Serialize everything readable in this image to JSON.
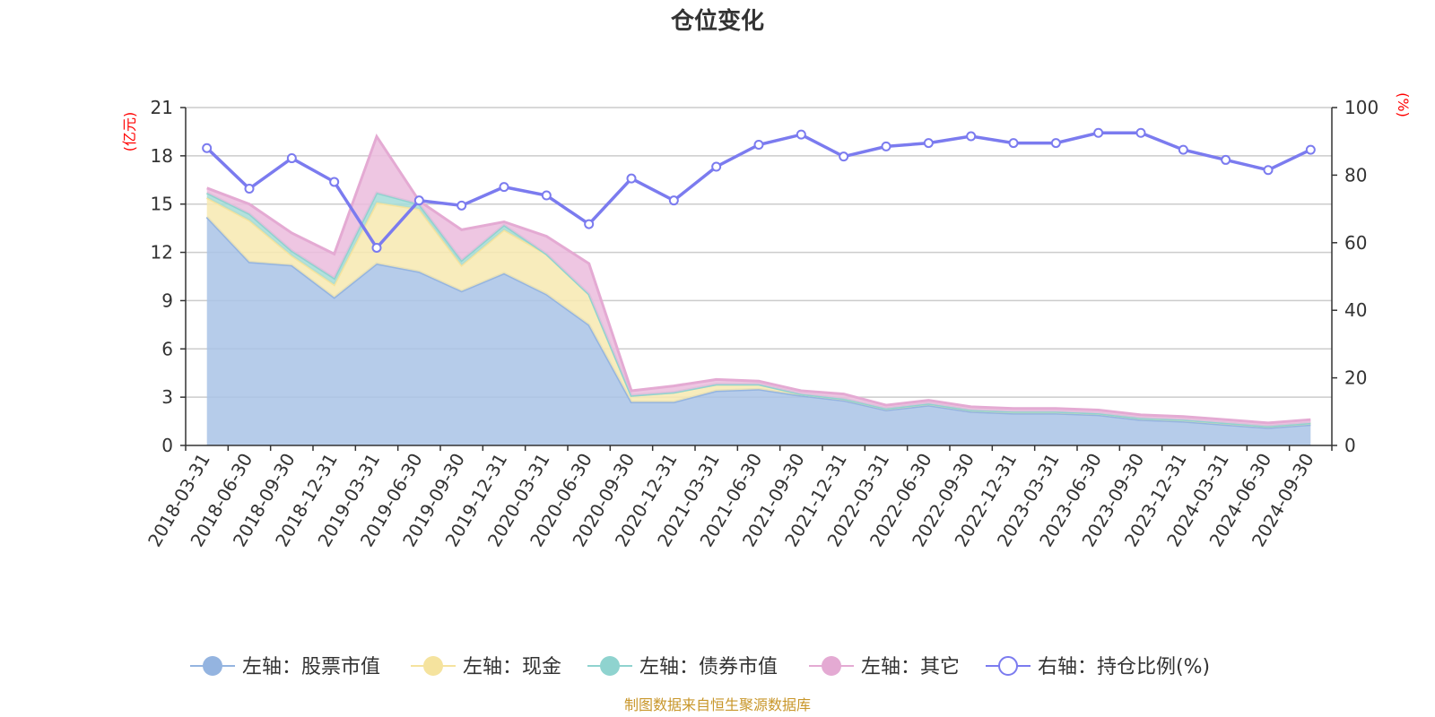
{
  "chart_data": {
    "type": "area",
    "title": "仓位变化",
    "left_axis_unit": "(亿元)",
    "right_axis_unit": "(%)",
    "left_ylim": [
      0,
      21
    ],
    "left_ticks": [
      0,
      3,
      6,
      9,
      12,
      15,
      18,
      21
    ],
    "right_ylim": [
      0,
      100
    ],
    "right_ticks": [
      0,
      20,
      40,
      60,
      80,
      100
    ],
    "categories": [
      "2018-03-31",
      "2018-06-30",
      "2018-09-30",
      "2018-12-31",
      "2019-03-31",
      "2019-06-30",
      "2019-09-30",
      "2019-12-31",
      "2020-03-31",
      "2020-06-30",
      "2020-09-30",
      "2020-12-31",
      "2021-03-31",
      "2021-06-30",
      "2021-09-30",
      "2021-12-31",
      "2022-03-31",
      "2022-06-30",
      "2022-09-30",
      "2022-12-31",
      "2023-03-31",
      "2023-06-30",
      "2023-09-30",
      "2023-12-31",
      "2024-03-31",
      "2024-06-30",
      "2024-09-30"
    ],
    "stacked_series": [
      {
        "name": "左轴：股票市值",
        "color": "#a9c3e6",
        "line_color": "#94b4e0",
        "values": [
          14.2,
          11.4,
          11.2,
          9.2,
          11.3,
          10.8,
          9.6,
          10.7,
          9.4,
          7.5,
          2.7,
          2.7,
          3.4,
          3.5,
          3.1,
          2.8,
          2.2,
          2.5,
          2.1,
          2.0,
          2.0,
          1.9,
          1.6,
          1.5,
          1.3,
          1.1,
          1.3
        ]
      },
      {
        "name": "左轴：现金",
        "color": "#f7e9b0",
        "line_color": "#f5e39e",
        "values": [
          1.2,
          2.6,
          0.6,
          0.8,
          3.8,
          3.9,
          1.6,
          2.7,
          2.5,
          1.9,
          0.4,
          0.6,
          0.4,
          0.3,
          0.1,
          0.1,
          0.1,
          0.1,
          0.1,
          0.1,
          0.1,
          0.1,
          0.1,
          0.1,
          0.1,
          0.1,
          0.1
        ]
      },
      {
        "name": "左轴：债券市值",
        "color": "#a4dcd8",
        "line_color": "#8fd3cf",
        "values": [
          0.3,
          0.4,
          0.3,
          0.4,
          0.6,
          0.3,
          0.3,
          0.3,
          0,
          0,
          0,
          0,
          0,
          0,
          0,
          0,
          0,
          0,
          0,
          0,
          0,
          0,
          0,
          0,
          0,
          0,
          0
        ]
      },
      {
        "name": "左轴：其它",
        "color": "#ebbcdd",
        "line_color": "#e4aad3",
        "values": [
          0.3,
          0.6,
          1.1,
          1.5,
          3.5,
          0.2,
          1.9,
          0.2,
          1.1,
          1.9,
          0.3,
          0.4,
          0.3,
          0.2,
          0.2,
          0.3,
          0.2,
          0.2,
          0.2,
          0.2,
          0.2,
          0.2,
          0.2,
          0.2,
          0.2,
          0.2,
          0.2
        ]
      }
    ],
    "line_series": {
      "name": "右轴：持仓比例(%)",
      "color": "#7b7bef",
      "axis": "right",
      "values": [
        88,
        76,
        85,
        78,
        58.5,
        72.5,
        71,
        76.5,
        74,
        65.5,
        79,
        72.5,
        82.5,
        89,
        92,
        85.5,
        88.5,
        89.5,
        91.5,
        89.5,
        89.5,
        92.5,
        92.5,
        87.5,
        84.5,
        81.5,
        87.5
      ]
    }
  },
  "legend": [
    {
      "label": "左轴：股票市值",
      "type": "filled",
      "color": "#94b4e0"
    },
    {
      "label": "左轴：现金",
      "type": "filled",
      "color": "#f5e39e"
    },
    {
      "label": "左轴：债券市值",
      "type": "filled",
      "color": "#8fd3cf"
    },
    {
      "label": "左轴：其它",
      "type": "filled",
      "color": "#e4aad3"
    },
    {
      "label": "右轴：持仓比例(%)",
      "type": "hollow",
      "color": "#7b7bef"
    }
  ],
  "source_text": "制图数据来自恒生聚源数据库"
}
